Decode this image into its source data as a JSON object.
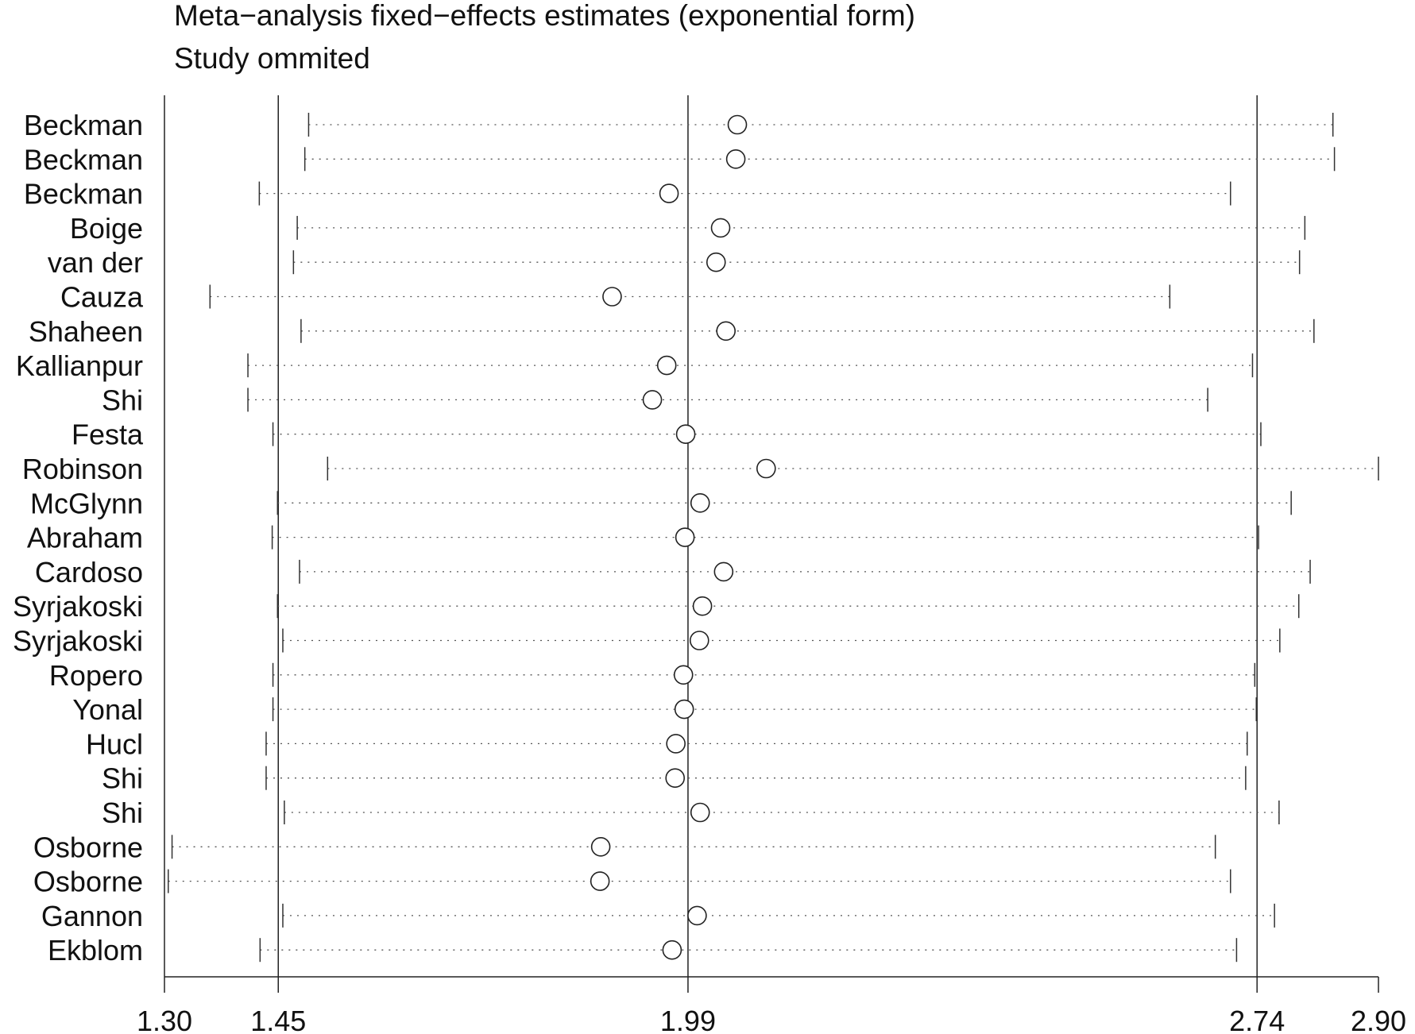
{
  "chart_data": {
    "type": "forest",
    "title": "Meta−analysis fixed−effects estimates (exponential form)",
    "subtitle": "Study ommited",
    "xlim": [
      1.3,
      2.9
    ],
    "ticks": [
      1.3,
      1.45,
      1.99,
      2.74,
      2.9
    ],
    "tick_labels": [
      "1.30",
      "1.45",
      "1.99",
      "2.74",
      "2.90"
    ],
    "reference_lines": [
      1.45,
      1.99,
      2.74
    ],
    "grid": false,
    "studies": [
      {
        "label": "Beckman",
        "estimate": 2.055,
        "lower": 1.49,
        "upper": 2.84
      },
      {
        "label": "Beckman",
        "estimate": 2.053,
        "lower": 1.485,
        "upper": 2.842
      },
      {
        "label": "Beckman",
        "estimate": 1.965,
        "lower": 1.425,
        "upper": 2.705
      },
      {
        "label": "Boige",
        "estimate": 2.033,
        "lower": 1.475,
        "upper": 2.803
      },
      {
        "label": "van der",
        "estimate": 2.027,
        "lower": 1.47,
        "upper": 2.796
      },
      {
        "label": "Cauza",
        "estimate": 1.89,
        "lower": 1.36,
        "upper": 2.625
      },
      {
        "label": "Shaheen",
        "estimate": 2.04,
        "lower": 1.48,
        "upper": 2.815
      },
      {
        "label": "Kallianpur",
        "estimate": 1.962,
        "lower": 1.41,
        "upper": 2.734
      },
      {
        "label": "Shi",
        "estimate": 1.943,
        "lower": 1.41,
        "upper": 2.675
      },
      {
        "label": "Festa",
        "estimate": 1.987,
        "lower": 1.443,
        "upper": 2.745
      },
      {
        "label": "Robinson",
        "estimate": 2.093,
        "lower": 1.515,
        "upper": 2.9
      },
      {
        "label": "McGlynn",
        "estimate": 2.006,
        "lower": 1.449,
        "upper": 2.785
      },
      {
        "label": "Abraham",
        "estimate": 1.986,
        "lower": 1.442,
        "upper": 2.742
      },
      {
        "label": "Cardoso",
        "estimate": 2.037,
        "lower": 1.478,
        "upper": 2.81
      },
      {
        "label": "Syrjakoski",
        "estimate": 2.009,
        "lower": 1.449,
        "upper": 2.795
      },
      {
        "label": "Syrjakoski",
        "estimate": 2.005,
        "lower": 1.456,
        "upper": 2.77
      },
      {
        "label": "Ropero",
        "estimate": 1.984,
        "lower": 1.443,
        "upper": 2.737
      },
      {
        "label": "Yonal",
        "estimate": 1.985,
        "lower": 1.443,
        "upper": 2.739
      },
      {
        "label": "Hucl",
        "estimate": 1.974,
        "lower": 1.434,
        "upper": 2.727
      },
      {
        "label": "Shi",
        "estimate": 1.973,
        "lower": 1.434,
        "upper": 2.725
      },
      {
        "label": "Shi",
        "estimate": 2.006,
        "lower": 1.458,
        "upper": 2.769
      },
      {
        "label": "Osborne",
        "estimate": 1.875,
        "lower": 1.31,
        "upper": 2.685
      },
      {
        "label": "Osborne",
        "estimate": 1.874,
        "lower": 1.305,
        "upper": 2.705
      },
      {
        "label": "Gannon",
        "estimate": 2.002,
        "lower": 1.456,
        "upper": 2.763
      },
      {
        "label": "Ekblom",
        "estimate": 1.969,
        "lower": 1.426,
        "upper": 2.713
      }
    ]
  }
}
